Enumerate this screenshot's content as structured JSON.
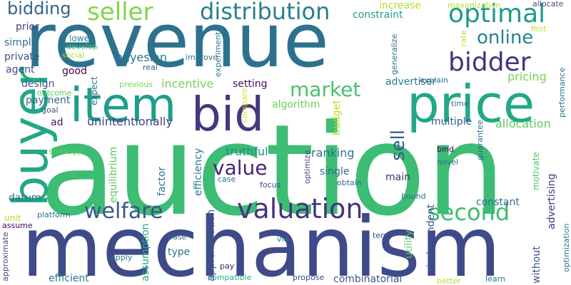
{
  "word_cloud": {
    "words": [
      {
        "text": "auction",
        "color": "#3dbc74"
      },
      {
        "text": "mechanism",
        "color": "#3e4a89"
      },
      {
        "text": "revenue",
        "color": "#2c728e"
      },
      {
        "text": "price",
        "color": "#22a884"
      },
      {
        "text": "buyer",
        "color": "#22a884"
      },
      {
        "text": "bid",
        "color": "#453781"
      },
      {
        "text": "item",
        "color": "#1f9e89"
      },
      {
        "text": "valuation",
        "color": "#46337e"
      },
      {
        "text": "welfare",
        "color": "#39568c"
      },
      {
        "text": "second",
        "color": "#3dbc74"
      },
      {
        "text": "bidder",
        "color": "#46327e"
      },
      {
        "text": "optimal",
        "color": "#1f9a8a"
      },
      {
        "text": "seller",
        "color": "#84d44b"
      },
      {
        "text": "distribution",
        "color": "#277f8e"
      },
      {
        "text": "market",
        "color": "#4ac16d"
      },
      {
        "text": "value",
        "color": "#482576"
      },
      {
        "text": "online",
        "color": "#25848e"
      },
      {
        "text": "bidding",
        "color": "#33638d"
      },
      {
        "text": "sell",
        "color": "#365c8d"
      },
      {
        "text": "bayesian",
        "color": "#2c728e"
      },
      {
        "text": "incentive",
        "color": "#7ad151"
      },
      {
        "text": "algorithm",
        "color": "#6ccd5a"
      },
      {
        "text": "pricing",
        "color": "#7ad151"
      },
      {
        "text": "advertiser",
        "color": "#2a788e"
      },
      {
        "text": "unintentionally",
        "color": "#414487"
      },
      {
        "text": "allocation",
        "color": "#5ec962"
      },
      {
        "text": "multiple",
        "color": "#365d8d"
      },
      {
        "text": "truthful",
        "color": "#21908d"
      },
      {
        "text": "ranking",
        "color": "#2c728e"
      },
      {
        "text": "single",
        "color": "#31688e"
      },
      {
        "text": "setting",
        "color": "#471164"
      },
      {
        "text": "design",
        "color": "#3b528b"
      },
      {
        "text": "payment",
        "color": "#2f6b8e"
      },
      {
        "text": "ad",
        "color": "#48186a"
      },
      {
        "text": "constant",
        "color": "#2f6c8e"
      },
      {
        "text": "main",
        "color": "#482878"
      },
      {
        "text": "efficient",
        "color": "#2a788e"
      },
      {
        "text": "combinatorial",
        "color": "#39568c"
      },
      {
        "text": "constraint",
        "color": "#1f9e89"
      },
      {
        "text": "increase",
        "color": "#b5de2b"
      },
      {
        "text": "prior",
        "color": "#433e85"
      },
      {
        "text": "simple",
        "color": "#2c728e"
      },
      {
        "text": "private",
        "color": "#3b528b"
      },
      {
        "text": "agent",
        "color": "#3e4a89"
      },
      {
        "text": "good",
        "color": "#440154"
      },
      {
        "text": "lower",
        "color": "#25848e"
      },
      {
        "text": "develop",
        "color": "#52c569"
      },
      {
        "text": "social",
        "color": "#addc30"
      },
      {
        "text": "real",
        "color": "#38588c"
      },
      {
        "text": "improve",
        "color": "#2a778e"
      },
      {
        "text": "previous",
        "color": "#7ad151"
      },
      {
        "text": "outcome",
        "color": "#5ec962"
      },
      {
        "text": "goal",
        "color": "#3b528b"
      },
      {
        "text": "strategy",
        "color": "#5ec962"
      },
      {
        "text": "datum",
        "color": "#2c728e"
      },
      {
        "text": "unit",
        "color": "#b5de2b"
      },
      {
        "text": "platform",
        "color": "#2a788e"
      },
      {
        "text": "assume",
        "color": "#450559"
      },
      {
        "text": "approximate",
        "color": "#3e4a89"
      },
      {
        "text": "apply",
        "color": "#2c728e"
      },
      {
        "text": "base",
        "color": "#2f6b8e"
      },
      {
        "text": "type",
        "color": "#2c728e"
      },
      {
        "text": "pay",
        "color": "#481a6c"
      },
      {
        "text": "compatible",
        "color": "#29af7f"
      },
      {
        "text": "propose",
        "color": "#3e4989"
      },
      {
        "text": "via",
        "color": "#2c728e"
      },
      {
        "text": "term",
        "color": "#3e4a89"
      },
      {
        "text": "better",
        "color": "#b5de2b"
      },
      {
        "text": "learn",
        "color": "#2c728e"
      },
      {
        "text": "without",
        "color": "#3b528b"
      },
      {
        "text": "case",
        "color": "#2c728e"
      },
      {
        "text": "focus",
        "color": "#3e4a89"
      },
      {
        "text": "obtain",
        "color": "#2c728e"
      },
      {
        "text": "bound",
        "color": "#2c728e"
      },
      {
        "text": "novel",
        "color": "#2a788e"
      },
      {
        "text": "bind",
        "color": "#440154"
      },
      {
        "text": "time",
        "color": "#2c728e"
      },
      {
        "text": "explain",
        "color": "#2f6c8e"
      },
      {
        "text": "first",
        "color": "#bddf26"
      },
      {
        "text": "allocate",
        "color": "#3e4a89"
      },
      {
        "text": "maximization",
        "color": "#b5de2b"
      },
      {
        "text": "rate",
        "color": "#b5de2b"
      },
      {
        "text": "guarantee",
        "color": "#2c728e"
      },
      {
        "text": "motivate",
        "color": "#4ac16d"
      },
      {
        "text": "advertising",
        "color": "#453882"
      },
      {
        "text": "independent",
        "color": "#3b528b"
      },
      {
        "text": "utility",
        "color": "#5ec962"
      },
      {
        "text": "budget",
        "color": "#b5de2b"
      },
      {
        "text": "equilibrium",
        "color": "#5ec962"
      },
      {
        "text": "factor",
        "color": "#2c728e"
      },
      {
        "text": "efficiency",
        "color": "#2a788e"
      },
      {
        "text": "approximation",
        "color": "#39568c"
      },
      {
        "text": "assumption",
        "color": "#22a884"
      },
      {
        "text": "optimize",
        "color": "#3e4a89"
      },
      {
        "text": "expect",
        "color": "#2c728e"
      },
      {
        "text": "experiment",
        "color": "#2a788e"
      },
      {
        "text": "compare",
        "color": "#d8e219"
      },
      {
        "text": "generalize",
        "color": "#2c728e"
      },
      {
        "text": "performance",
        "color": "#2c728e"
      },
      {
        "text": "optimization",
        "color": "#2c728e"
      }
    ]
  }
}
